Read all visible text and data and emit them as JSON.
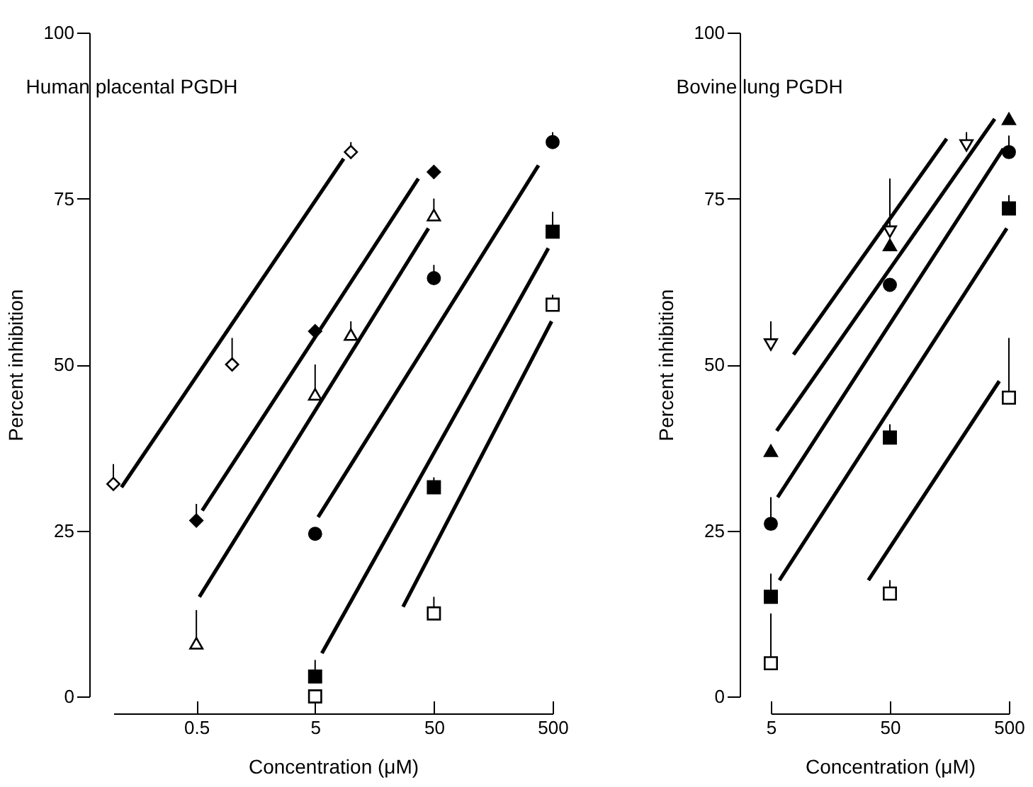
{
  "chart_data": [
    {
      "type": "scatter",
      "title": "Human placental PGDH",
      "xlabel": "Concentration (μM)",
      "ylabel": "Percent inhibition",
      "log": "x",
      "xlim": [
        0.1,
        500
      ],
      "xticks": [
        0.5,
        5,
        50,
        500
      ],
      "ylim": [
        0,
        100
      ],
      "yticks": [
        0,
        25,
        50,
        75,
        100
      ],
      "grid": false,
      "series": [
        {
          "color": "#ffffff",
          "marker": "diamond",
          "x": [
            0.1,
            1,
            10
          ],
          "values": [
            32,
            50,
            82
          ],
          "errors": [
            [
              32,
              35
            ],
            [
              50,
              54
            ],
            [
              82,
              83.5
            ]
          ]
        },
        {
          "type": "line",
          "color": "#000000",
          "x": [
            0.117,
            8.7
          ],
          "values": [
            31.5,
            81
          ]
        },
        {
          "color": "#000000",
          "marker": "diamond",
          "x": [
            0.5,
            5,
            50
          ],
          "values": [
            26.5,
            55,
            79
          ],
          "errors": [
            [
              26.5,
              29
            ],
            null,
            null
          ]
        },
        {
          "type": "line",
          "color": "#000000",
          "x": [
            0.56,
            37
          ],
          "values": [
            28,
            78
          ]
        },
        {
          "color": "#ffffff",
          "marker": "triangle",
          "x": [
            0.5,
            5,
            10,
            50
          ],
          "values": [
            8,
            45.5,
            54.5,
            72.5
          ],
          "errors": [
            [
              8,
              13
            ],
            [
              45.5,
              50
            ],
            [
              54.5,
              56.5
            ],
            [
              72.5,
              75
            ]
          ]
        },
        {
          "type": "line",
          "color": "#000000",
          "x": [
            0.53,
            45
          ],
          "values": [
            15,
            70.5
          ]
        },
        {
          "color": "#000000",
          "marker": "circle",
          "x": [
            5,
            50,
            500
          ],
          "values": [
            24.5,
            63,
            83.5
          ],
          "errors": [
            null,
            [
              63,
              65
            ],
            [
              83.5,
              85
            ]
          ]
        },
        {
          "type": "line",
          "color": "#000000",
          "x": [
            5.3,
            380
          ],
          "values": [
            27,
            80
          ]
        },
        {
          "color": "#000000",
          "marker": "square",
          "x": [
            5,
            50,
            500
          ],
          "values": [
            3,
            31.5,
            70
          ],
          "errors": [
            [
              3,
              5.5
            ],
            [
              31.5,
              33
            ],
            [
              70,
              73
            ]
          ]
        },
        {
          "type": "line",
          "color": "#000000",
          "x": [
            5.7,
            460
          ],
          "values": [
            6.5,
            67.5
          ]
        },
        {
          "color": "#ffffff",
          "marker": "square",
          "x": [
            5,
            50,
            500
          ],
          "values": [
            0,
            12.5,
            59
          ],
          "errors": [
            null,
            [
              12.5,
              15
            ],
            [
              59,
              60.5
            ]
          ]
        },
        {
          "type": "line",
          "color": "#000000",
          "x": [
            27.5,
            490
          ],
          "values": [
            13.5,
            56.5
          ]
        }
      ]
    },
    {
      "type": "scatter",
      "title": "Bovine lung PGDH",
      "xlabel": "Concentration (μM)",
      "ylabel": "Percent inhibition",
      "log": "x",
      "xlim": [
        5,
        500
      ],
      "xticks": [
        5,
        50,
        500
      ],
      "ylim": [
        0,
        100
      ],
      "yticks": [
        0,
        25,
        50,
        75,
        100
      ],
      "grid": false,
      "series": [
        {
          "color": "#ffffff",
          "marker": "triangle-down",
          "x": [
            5,
            50,
            220
          ],
          "values": [
            53,
            70,
            83
          ],
          "errors": [
            [
              53,
              56.5
            ],
            [
              70,
              78
            ],
            [
              83,
              85
            ]
          ]
        },
        {
          "type": "line",
          "color": "#000000",
          "x": [
            7.75,
            150
          ],
          "values": [
            51.5,
            84
          ]
        },
        {
          "color": "#000000",
          "marker": "triangle",
          "x": [
            5,
            50,
            500
          ],
          "values": [
            37,
            68,
            87
          ]
        },
        {
          "type": "line",
          "color": "#000000",
          "x": [
            5.6,
            380
          ],
          "values": [
            40,
            87
          ]
        },
        {
          "color": "#000000",
          "marker": "circle",
          "x": [
            5,
            50,
            500
          ],
          "values": [
            26,
            62,
            82
          ],
          "errors": [
            [
              26,
              30
            ],
            null,
            [
              82,
              84.5
            ]
          ]
        },
        {
          "type": "line",
          "color": "#000000",
          "x": [
            5.7,
            450
          ],
          "values": [
            30,
            82.5
          ]
        },
        {
          "color": "#000000",
          "marker": "square",
          "x": [
            5,
            50,
            500
          ],
          "values": [
            15,
            39,
            73.5
          ],
          "errors": [
            [
              15,
              18.5
            ],
            [
              39,
              41
            ],
            [
              73.5,
              75.5
            ]
          ]
        },
        {
          "type": "line",
          "color": "#000000",
          "x": [
            5.9,
            480
          ],
          "values": [
            17.5,
            70.5
          ]
        },
        {
          "color": "#ffffff",
          "marker": "square",
          "x": [
            5,
            50,
            500
          ],
          "values": [
            5,
            15.5,
            45
          ],
          "errors": [
            [
              5,
              12.5
            ],
            [
              15.5,
              17.5
            ],
            [
              45,
              54
            ]
          ]
        },
        {
          "type": "line",
          "color": "#000000",
          "x": [
            33,
            415
          ],
          "values": [
            17.5,
            47.5
          ]
        }
      ]
    }
  ]
}
